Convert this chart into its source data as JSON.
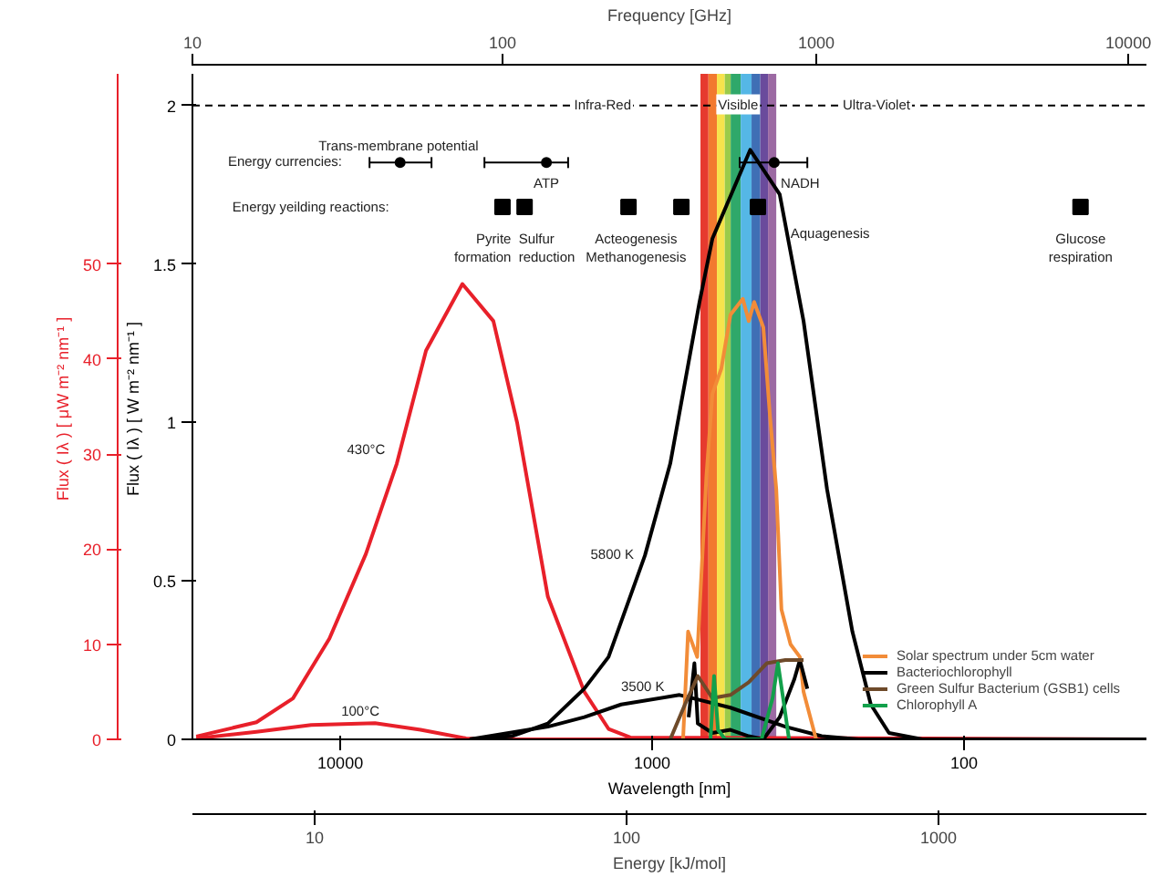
{
  "chart_data": [
    {
      "type": "other",
      "xlabel": "Frequency [GHz]",
      "annotations": [
        "10",
        "100",
        "1000",
        "10000"
      ]
    },
    {
      "type": "line",
      "xlabel": "Wavelength [nm]",
      "ylabel": "Flux ( Iλ )  [ W m⁻² nm⁻¹ ]",
      "y2label": "Flux ( Iλ )  [ μW m⁻² nm⁻¹ ]",
      "log": "x",
      "xlim": [
        29800,
        26
      ],
      "xticks": [
        10000,
        1000,
        100
      ],
      "ylim": [
        0,
        2.1
      ],
      "yticks": [
        0,
        0.5,
        1,
        1.5,
        2
      ],
      "y2lim": [
        0,
        70
      ],
      "y2ticks": [
        0,
        10,
        20,
        30,
        40,
        50
      ],
      "grid": false,
      "legend": "bottom right",
      "series": [
        {
          "color": "#e8202a",
          "axis": "y2",
          "x": [
            28970,
            18580,
            14190,
            10840,
            8280,
            6590,
            5310,
            4060,
            3230,
            2710,
            2160,
            1650,
            1380,
            1175,
            26
          ],
          "values": [
            0.3,
            1.8,
            4.3,
            10.6,
            19.5,
            29,
            40.9,
            47.9,
            44,
            33.3,
            15,
            5,
            1.1,
            0.2,
            0
          ]
        },
        {
          "color": "#e8202a",
          "axis": "y2",
          "x": [
            28970,
            18580,
            12400,
            7740,
            5530,
            3950,
            2820,
            26
          ],
          "values": [
            0.1,
            0.8,
            1.5,
            1.7,
            1.0,
            0.1,
            0,
            0
          ]
        },
        {
          "color": "#000000",
          "x": [
            3845,
            2820,
            2160,
            1650,
            1380,
            1055,
            875,
            705,
            641,
            485,
            390,
            327,
            275,
            228,
            199,
            174,
            136,
            26
          ],
          "values": [
            0,
            0.01,
            0.05,
            0.16,
            0.26,
            0.58,
            0.87,
            1.38,
            1.58,
            1.86,
            1.72,
            1.32,
            0.79,
            0.34,
            0.11,
            0.02,
            0,
            0
          ]
        },
        {
          "color": "#000000",
          "x": [
            3845,
            2160,
            1650,
            1257,
            817,
            561,
            374,
            286,
            218,
            26
          ],
          "values": [
            0,
            0.04,
            0.07,
            0.11,
            0.14,
            0.1,
            0.04,
            0.01,
            0,
            0
          ]
        },
        {
          "name": "Solar spectrum under 5cm water",
          "color": "#f28c38",
          "x": [
            796,
            767,
            717,
            670,
            641,
            600,
            561,
            512,
            490,
            471,
            440,
            419,
            400,
            385,
            360,
            336,
            327,
            298
          ],
          "values": [
            0,
            0.34,
            0.26,
            0.83,
            1.09,
            1.17,
            1.34,
            1.39,
            1.32,
            1.38,
            1.3,
            1.02,
            0.79,
            0.41,
            0.3,
            0.26,
            0.15,
            0
          ]
        },
        {
          "name": "Bacteriochlorophyll",
          "color": "#000000",
          "x": [
            764,
            732,
            714,
            641,
            561,
            490,
            440,
            390,
            350,
            336,
            318
          ],
          "values": [
            0.07,
            0.24,
            0.05,
            0.02,
            0.03,
            0.01,
            0,
            0.07,
            0.19,
            0.25,
            0.16
          ]
        },
        {
          "name": "Green Sulfur Bacterium (GSB1) cells",
          "color": "#6e4a2a",
          "x": [
            875,
            785,
            714,
            641,
            561,
            490,
            429,
            374,
            327
          ],
          "values": [
            0,
            0.11,
            0.2,
            0.13,
            0.14,
            0.18,
            0.24,
            0.25,
            0.25
          ]
        },
        {
          "name": "Chlorophyll A",
          "color": "#12a04b",
          "x": [
            650,
            633,
            615,
            583,
            446,
            411,
            395,
            379,
            364
          ],
          "values": [
            0,
            0.2,
            0.03,
            0,
            0,
            0.13,
            0.24,
            0.12,
            0
          ]
        },
        {
          "type": "scatter",
          "marker": "circle",
          "color": "#000000",
          "x": [
            6430,
            2183,
            406
          ],
          "values": [
            1.82,
            1.82,
            1.82
          ],
          "xerrors": [
            [
              5100,
              8060
            ],
            [
              1860,
              3450
            ],
            [
              318,
              524
            ]
          ]
        },
        {
          "type": "scatter",
          "marker": "square",
          "color": "#000000",
          "x": [
            3020,
            2565,
            1191,
            806,
            458,
            42.3
          ],
          "values": [
            1.68,
            1.68,
            1.68,
            1.68,
            1.68,
            1.68
          ]
        }
      ],
      "bands": [
        {
          "axis": "x",
          "from": 700,
          "to": 660,
          "color": "#e63a2e"
        },
        {
          "axis": "x",
          "from": 660,
          "to": 620,
          "color": "#f2792f"
        },
        {
          "axis": "x",
          "from": 620,
          "to": 585,
          "color": "#f7e34c"
        },
        {
          "axis": "x",
          "from": 585,
          "to": 560,
          "color": "#9bcb4a"
        },
        {
          "axis": "x",
          "from": 560,
          "to": 520,
          "color": "#2fa86a"
        },
        {
          "axis": "x",
          "from": 520,
          "to": 480,
          "color": "#55b7e6"
        },
        {
          "axis": "x",
          "from": 480,
          "to": 450,
          "color": "#3f6fb5"
        },
        {
          "axis": "x",
          "from": 450,
          "to": 425,
          "color": "#6a4b9c"
        },
        {
          "axis": "x",
          "from": 425,
          "to": 400,
          "color": "#9c6aa3"
        }
      ],
      "ref_lines": [
        {
          "axis": "y",
          "value": 2,
          "line_style": "dashed"
        }
      ],
      "annotations": [
        "Infra-Red",
        "Visible",
        "Ultra-Violet",
        "Energy currencies:",
        "Trans-membrane potential",
        "ATP",
        "NADH",
        "Energy yeilding reactions:",
        "Pyrite\nformation",
        "Sulfur\nreduction",
        "Acteogenesis\nMethanogenesis",
        "Aquagenesis",
        "Glucose\nrespiration",
        "430°C",
        "100°C",
        "5800 K",
        "3500 K"
      ]
    },
    {
      "type": "other",
      "xlabel": "Energy [kJ/mol]",
      "annotations": [
        "10",
        "100",
        "1000"
      ]
    }
  ]
}
